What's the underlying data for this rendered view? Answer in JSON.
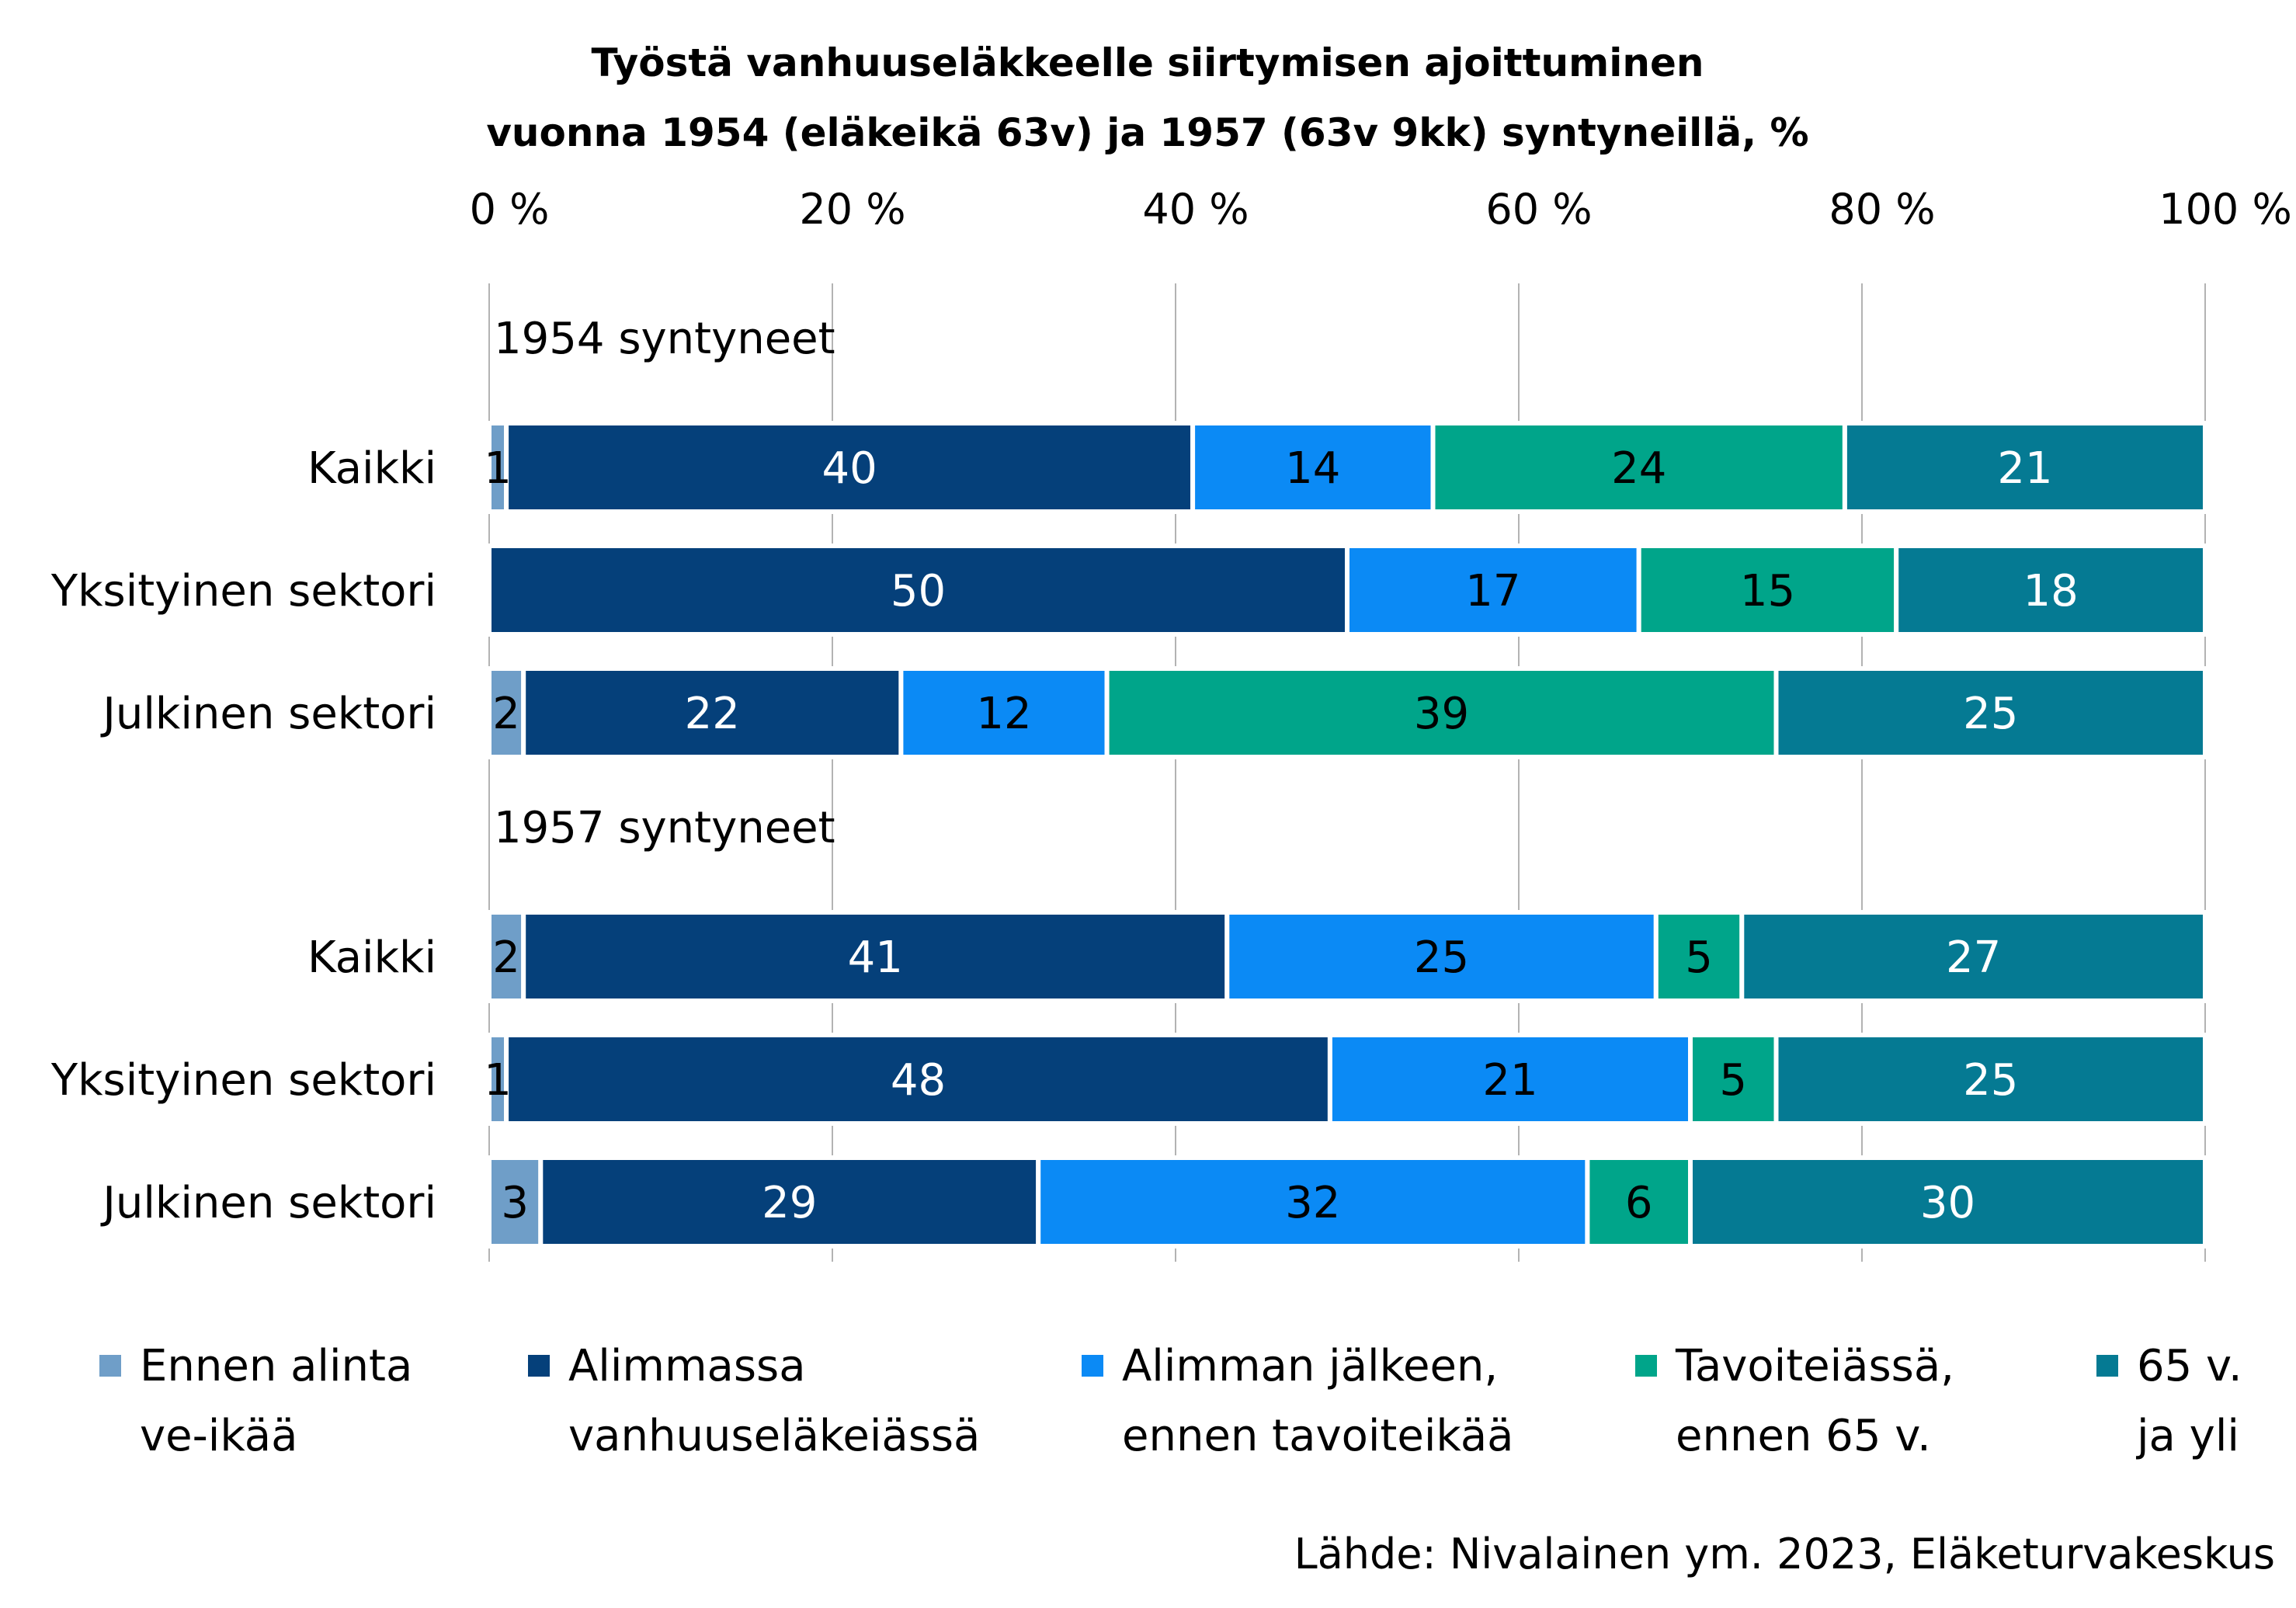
{
  "chart_data": {
    "type": "bar",
    "orientation": "horizontal",
    "stacked": true,
    "title_lines": [
      "Työstä vanhuuseläkkeelle siirtymisen ajoittuminen",
      "vuonna 1954 (eläkeikä 63v) ja 1957 (63v 9kk) syntyneillä, %"
    ],
    "xlim": [
      0,
      100
    ],
    "x_ticks": [
      "0 %",
      "20 %",
      "40 %",
      "60 %",
      "80 %",
      "100 %"
    ],
    "grid": true,
    "legend_position": "bottom",
    "groups": [
      {
        "label": "1954 syntyneet",
        "rows": [
          {
            "label": "Kaikki",
            "values": [
              1,
              40,
              14,
              24,
              21
            ]
          },
          {
            "label": "Yksityinen sektori",
            "values": [
              0,
              50,
              17,
              15,
              18
            ]
          },
          {
            "label": "Julkinen sektori",
            "values": [
              2,
              22,
              12,
              39,
              25
            ]
          }
        ]
      },
      {
        "label": "1957 syntyneet",
        "rows": [
          {
            "label": "Kaikki",
            "values": [
              2,
              41,
              25,
              5,
              27
            ]
          },
          {
            "label": "Yksityinen sektori",
            "values": [
              1,
              48,
              21,
              5,
              25
            ]
          },
          {
            "label": "Julkinen sektori",
            "values": [
              3,
              29,
              32,
              6,
              30
            ]
          }
        ]
      }
    ],
    "series": [
      {
        "name_lines": [
          "Ennen alinta",
          "ve-ikää"
        ],
        "color": "#6f9ec8",
        "label_color": "#000000"
      },
      {
        "name_lines": [
          "Alimmassa",
          "vanhuuseläkeiässä"
        ],
        "color": "#05407a",
        "label_color": "#ffffff"
      },
      {
        "name_lines": [
          "Alimman jälkeen,",
          "ennen tavoiteikää"
        ],
        "color": "#0b8af5",
        "label_color": "#000000"
      },
      {
        "name_lines": [
          "Tavoiteiässä,",
          "ennen 65 v."
        ],
        "color": "#00a58a",
        "label_color": "#000000"
      },
      {
        "name_lines": [
          "65 v.",
          "ja yli"
        ],
        "color": "#057a93",
        "label_color": "#ffffff"
      }
    ],
    "source": "Lähde: Nivalainen ym. 2023, Eläketurvakeskus"
  }
}
